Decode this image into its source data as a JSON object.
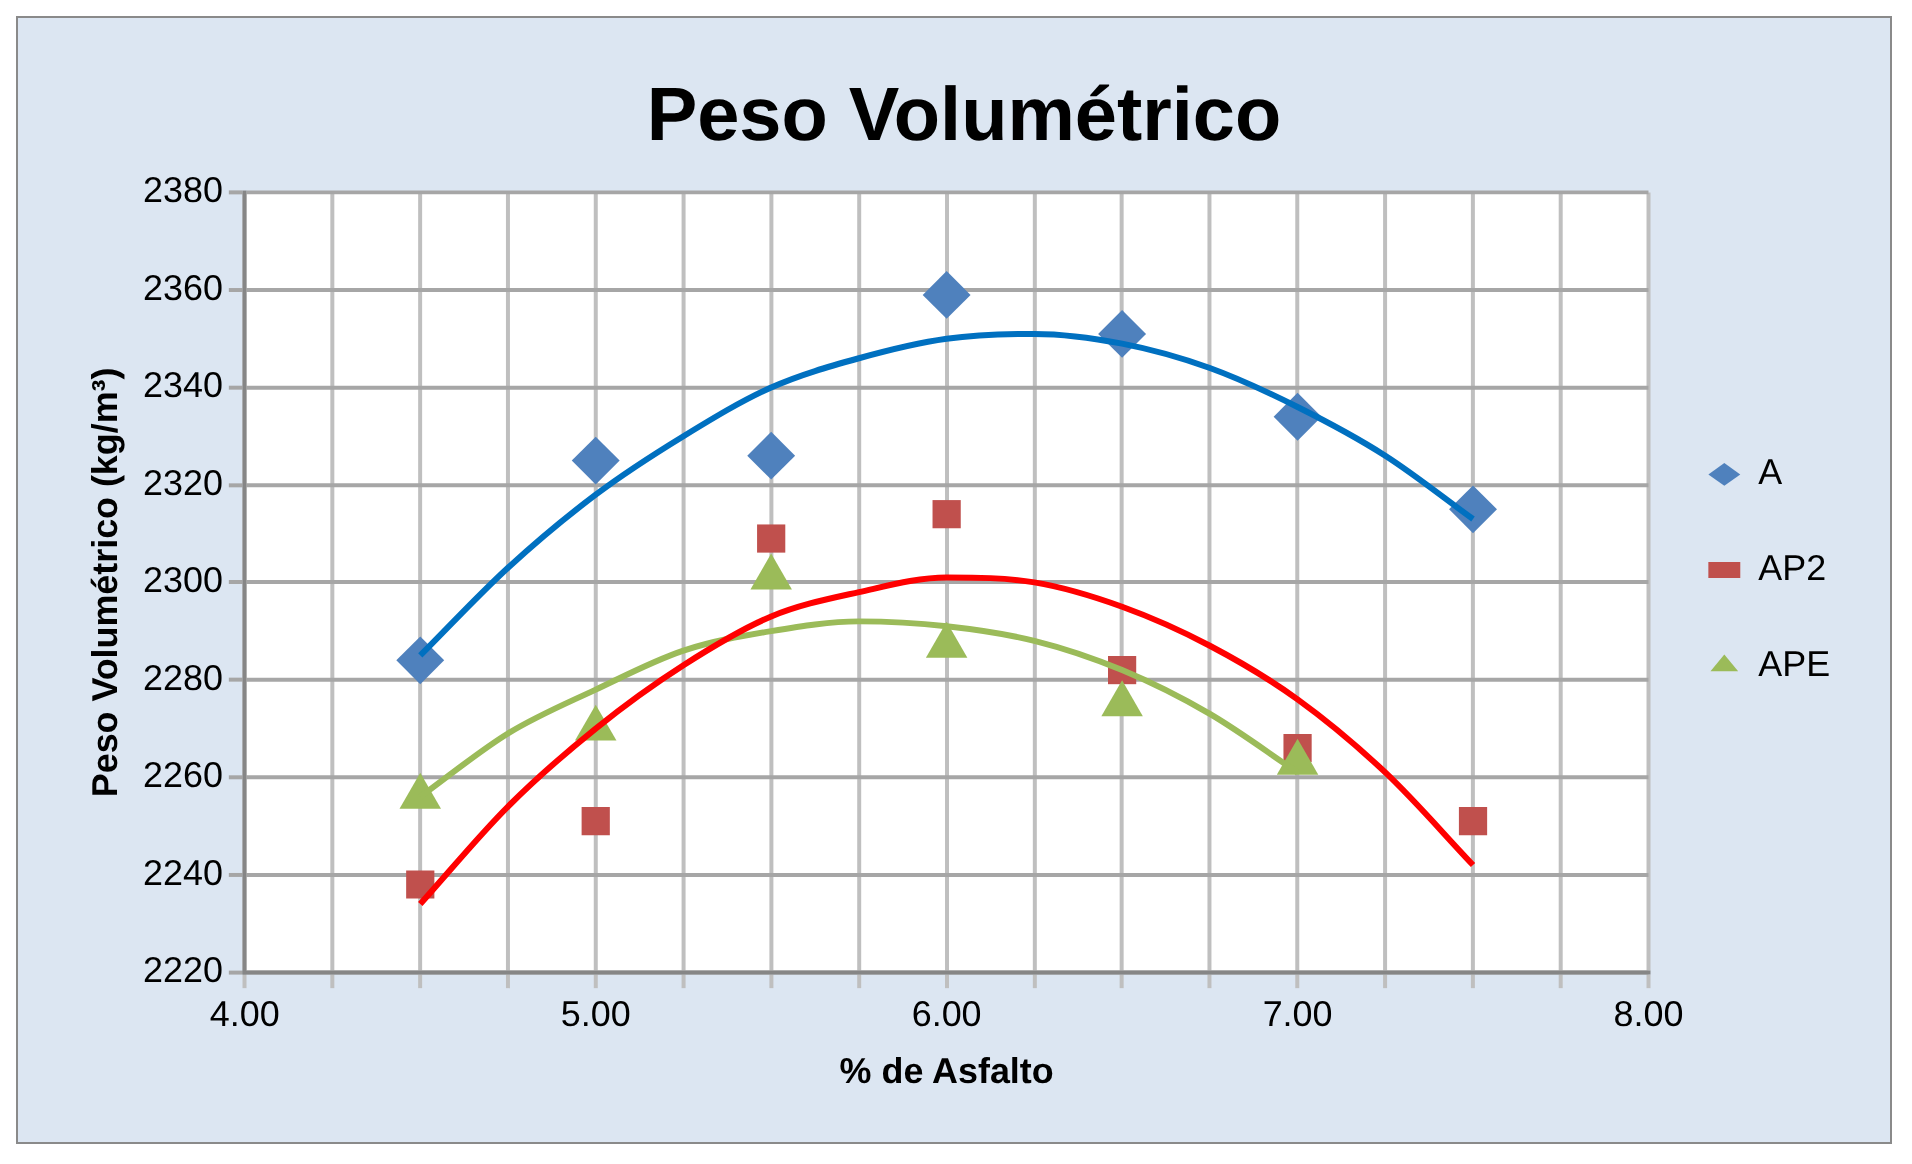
{
  "chart_data": {
    "type": "scatter",
    "title": "Peso Volumétrico",
    "xlabel": "% de Asfalto",
    "ylabel": "Peso Volumétrico (kg/m³)",
    "xlim": [
      4,
      8
    ],
    "xticks": [
      {
        "value": 4,
        "label": "4.00"
      },
      {
        "value": 4.25,
        "label": null
      },
      {
        "value": 4.5,
        "label": null
      },
      {
        "value": 4.75,
        "label": null
      },
      {
        "value": 5,
        "label": "5.00"
      },
      {
        "value": 5.25,
        "label": null
      },
      {
        "value": 5.5,
        "label": null
      },
      {
        "value": 5.75,
        "label": null
      },
      {
        "value": 6,
        "label": "6.00"
      },
      {
        "value": 6.25,
        "label": null
      },
      {
        "value": 6.5,
        "label": null
      },
      {
        "value": 6.75,
        "label": null
      },
      {
        "value": 7,
        "label": "7.00"
      },
      {
        "value": 7.25,
        "label": null
      },
      {
        "value": 7.5,
        "label": null
      },
      {
        "value": 7.75,
        "label": null
      },
      {
        "value": 8,
        "label": "8.00"
      }
    ],
    "ylim": [
      2220,
      2380
    ],
    "yticks": [
      2220,
      2240,
      2260,
      2280,
      2300,
      2320,
      2340,
      2360,
      2380
    ],
    "grid": true,
    "legend": "right",
    "series": [
      {
        "name": "A",
        "type": "scatter",
        "marker": "diamond",
        "color": "#4f81bd",
        "x": [
          4.5,
          5,
          5.5,
          6,
          6.5,
          7,
          7.5
        ],
        "values": [
          2284,
          2325,
          2326,
          2359,
          2351,
          2334,
          2315
        ]
      },
      {
        "name": "AP2",
        "type": "scatter",
        "marker": "square",
        "color": "#c0504d",
        "x": [
          4.5,
          5,
          5.5,
          6,
          6.5,
          7,
          7.5
        ],
        "values": [
          2238,
          2251,
          2309,
          2314,
          2282,
          2266,
          2251
        ]
      },
      {
        "name": "APE",
        "type": "scatter",
        "marker": "triangle",
        "color": "#9bbb59",
        "x": [
          4.5,
          5,
          5.5,
          6,
          6.5,
          7
        ],
        "values": [
          2256,
          2270,
          2301,
          2287,
          2275,
          2263
        ]
      },
      {
        "type": "line",
        "marker": "none",
        "color": "#0070c0",
        "x": [
          4.5,
          4.75,
          5,
          5.25,
          5.5,
          5.75,
          6,
          6.25,
          6.5,
          6.75,
          7,
          7.25,
          7.5
        ],
        "values": [
          2285,
          2303,
          2318,
          2330,
          2340,
          2346,
          2350,
          2351,
          2349,
          2344,
          2336,
          2326,
          2313
        ]
      },
      {
        "type": "line",
        "marker": "none",
        "color": "#ff0000",
        "x": [
          4.5,
          4.75,
          5,
          5.25,
          5.5,
          5.75,
          6,
          6.25,
          6.5,
          6.75,
          7,
          7.25,
          7.5
        ],
        "values": [
          2234,
          2254,
          2270,
          2283,
          2293,
          2298,
          2301,
          2300,
          2295,
          2287,
          2276,
          2261,
          2242
        ]
      },
      {
        "type": "line",
        "marker": "none",
        "color": "#9bbb59",
        "x": [
          4.5,
          4.75,
          5,
          5.25,
          5.5,
          5.75,
          6,
          6.25,
          6.5,
          6.75,
          7
        ],
        "values": [
          2256,
          2269,
          2278,
          2286,
          2290,
          2292,
          2291,
          2288,
          2282,
          2273,
          2261
        ]
      }
    ]
  }
}
